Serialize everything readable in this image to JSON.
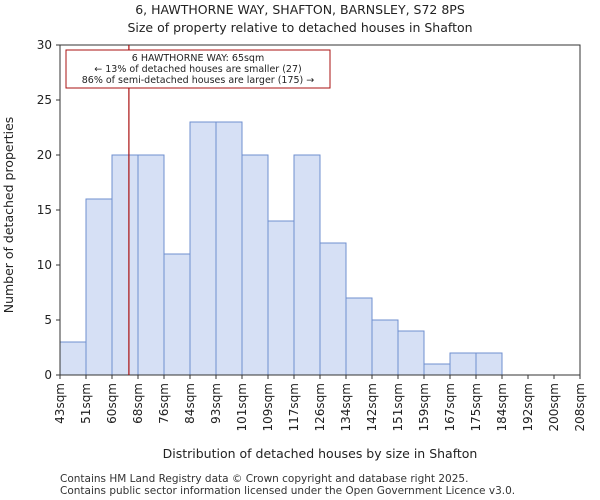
{
  "chart_data": {
    "type": "bar",
    "title": "6, HAWTHORNE WAY, SHAFTON, BARNSLEY, S72 8PS",
    "subtitle": "Size of property relative to detached houses in Shafton",
    "xlabel": "Distribution of detached houses by size in Shafton",
    "ylabel": "Number of detached properties",
    "ylim": [
      0,
      30
    ],
    "yticks": [
      0,
      5,
      10,
      15,
      20,
      25,
      30
    ],
    "bin_edges": [
      "43sqm",
      "51sqm",
      "60sqm",
      "68sqm",
      "76sqm",
      "84sqm",
      "93sqm",
      "101sqm",
      "109sqm",
      "117sqm",
      "126sqm",
      "134sqm",
      "142sqm",
      "151sqm",
      "159sqm",
      "167sqm",
      "175sqm",
      "184sqm",
      "192sqm",
      "200sqm",
      "208sqm"
    ],
    "values": [
      3,
      16,
      20,
      20,
      11,
      23,
      23,
      20,
      14,
      20,
      12,
      7,
      5,
      4,
      1,
      2,
      2,
      0,
      0,
      0
    ],
    "bar_color": "#d6e0f5",
    "bar_edge_color": "#6f8fcf",
    "marker": {
      "value_bin_position": 2.65,
      "color": "#aa1111",
      "annotation": [
        "6 HAWTHORNE WAY: 65sqm",
        "← 13% of detached houses are smaller (27)",
        "86% of semi-detached houses are larger (175) →"
      ]
    }
  },
  "footer": {
    "line1": "Contains HM Land Registry data © Crown copyright and database right 2025.",
    "line2": "Contains public sector information licensed under the Open Government Licence v3.0."
  }
}
